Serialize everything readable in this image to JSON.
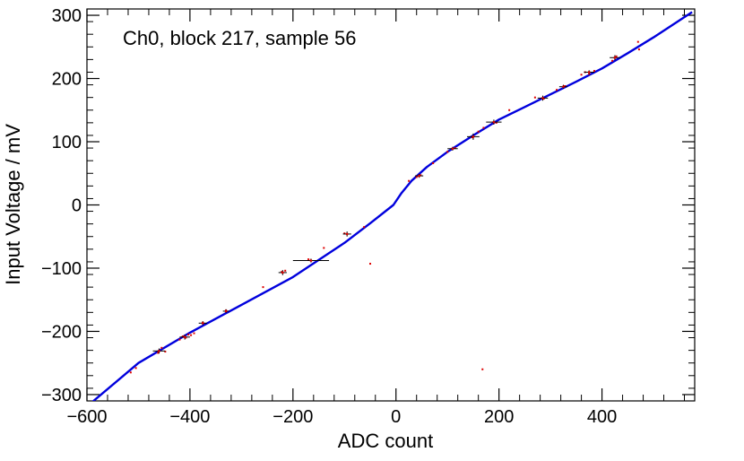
{
  "chart_data": {
    "type": "scatter",
    "annotation": "Ch0, block 217, sample 56",
    "xlabel": "ADC count",
    "ylabel": "Input Voltage / mV",
    "xlim": [
      -600,
      580
    ],
    "ylim": [
      -310,
      310
    ],
    "x_ticks": [
      -600,
      -400,
      -200,
      0,
      200,
      400
    ],
    "x_tick_labels": [
      "−600",
      "−400",
      "−200",
      "0",
      "200",
      "400"
    ],
    "y_ticks": [
      -300,
      -200,
      -100,
      0,
      100,
      200,
      300
    ],
    "y_tick_labels": [
      "−300",
      "−200",
      "−100",
      "0",
      "100",
      "200",
      "300"
    ],
    "grid": false,
    "colors": {
      "fit": "#0000dd",
      "points": "#dd0000",
      "error_bars": "#000000",
      "frame": "#000000"
    },
    "series": [
      {
        "kind": "fit_curve",
        "x": [
          -590,
          -500,
          -400,
          -300,
          -200,
          -100,
          -50,
          -5,
          10,
          30,
          60,
          100,
          150,
          200,
          250,
          300,
          350,
          400,
          450,
          500,
          575
        ],
        "y": [
          -312,
          -250,
          -202,
          -158,
          -114,
          -60,
          -29,
          0,
          18,
          38,
          60,
          84,
          110,
          135,
          155,
          175,
          195,
          216,
          240,
          265,
          305
        ]
      },
      {
        "kind": "scatter",
        "x": [
          -515,
          -505,
          -462,
          -455,
          -448,
          -420,
          -414,
          -408,
          -403,
          -398,
          -392,
          -375,
          -330,
          -258,
          -222,
          -215,
          -170,
          -140,
          -100,
          -62,
          -50,
          25,
          40,
          48,
          72,
          100,
          115,
          148,
          160,
          170,
          195,
          220,
          270,
          287,
          312,
          328,
          360,
          367,
          375,
          385,
          420,
          428,
          470,
          472
        ],
        "y": [
          -265,
          -258,
          -234,
          -226,
          -232,
          -213,
          -208,
          -210,
          -205,
          -206,
          -203,
          -186,
          -167,
          -130,
          -106,
          -104,
          -86,
          -68,
          -45,
          -35,
          -93,
          38,
          44,
          47,
          66,
          84,
          90,
          107,
          116,
          122,
          130,
          150,
          170,
          168,
          182,
          188,
          206,
          210,
          207,
          212,
          228,
          235,
          258,
          246
        ]
      },
      {
        "kind": "error_points",
        "x": [
          -460,
          -410,
          -375,
          -330,
          -220,
          -165,
          -95,
          45,
          110,
          150,
          190,
          285,
          325,
          375,
          425
        ],
        "y": [
          -231,
          -209,
          -187,
          -168,
          -107,
          -88,
          -46,
          46,
          89,
          108,
          131,
          169,
          187,
          210,
          233
        ],
        "x_err": [
          12,
          10,
          8,
          6,
          8,
          35,
          8,
          8,
          10,
          12,
          15,
          10,
          8,
          10,
          10
        ],
        "y_err": [
          4,
          4,
          3,
          3,
          4,
          3,
          4,
          3,
          3,
          5,
          4,
          4,
          3,
          3,
          4
        ]
      },
      {
        "kind": "outlier",
        "x": [
          168
        ],
        "y": [
          -260
        ]
      }
    ]
  }
}
